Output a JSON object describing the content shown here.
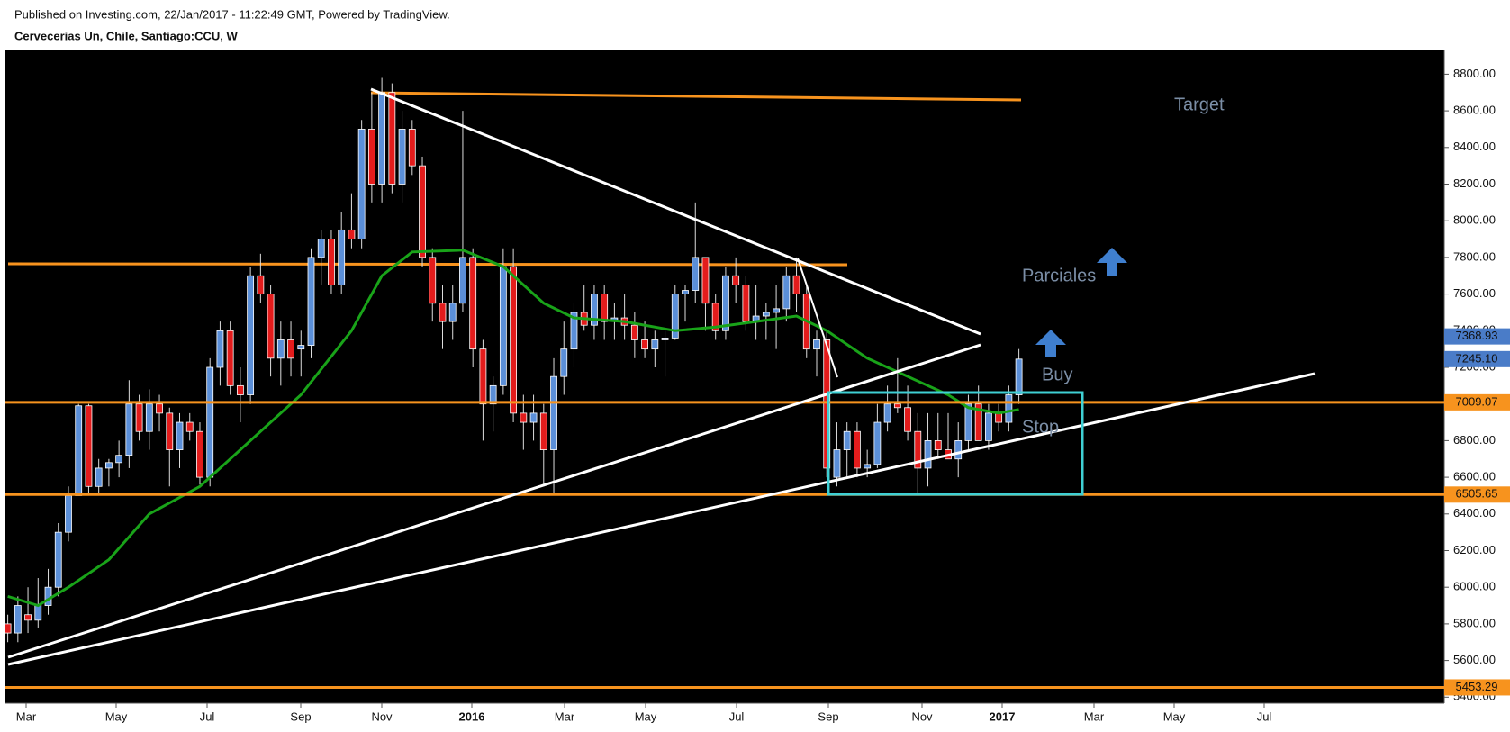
{
  "chart_data": {
    "type": "candlestick",
    "published": "Published on Investing.com, 22/Jan/2017 - 11:22:49 GMT, Powered by TradingView.",
    "title": "Cervecerias Un, Chile, Santiago:CCU, W",
    "up_color": "#5b8fd8",
    "down_color": "#e31c1c",
    "ylim": [
      5400,
      8800
    ],
    "yticks": [
      {
        "value": 5400,
        "label": "5400.00"
      },
      {
        "value": 5600,
        "label": "5600.00"
      },
      {
        "value": 5800,
        "label": "5800.00"
      },
      {
        "value": 6000,
        "label": "6000.00"
      },
      {
        "value": 6200,
        "label": "6200.00"
      },
      {
        "value": 6400,
        "label": "6400.00"
      },
      {
        "value": 6600,
        "label": "6600.00"
      },
      {
        "value": 6800,
        "label": "6800.00"
      },
      {
        "value": 7000,
        "label": "7000.00"
      },
      {
        "value": 7200,
        "label": "7200.00"
      },
      {
        "value": 7400,
        "label": "7400.00"
      },
      {
        "value": 7600,
        "label": "7600.00"
      },
      {
        "value": 7800,
        "label": "7800.00"
      },
      {
        "value": 8000,
        "label": "8000.00"
      },
      {
        "value": 8200,
        "label": "8200.00"
      },
      {
        "value": 8400,
        "label": "8400.00"
      },
      {
        "value": 8600,
        "label": "8600.00"
      },
      {
        "value": 8800,
        "label": "8800.00"
      }
    ],
    "x_labels": [
      "Mar",
      "May",
      "Jul",
      "Sep",
      "Nov",
      "2016",
      "Mar",
      "May",
      "Jul",
      "Sep",
      "Nov",
      "2017",
      "Mar",
      "May",
      "Jul"
    ],
    "ohlc": [
      [
        5800,
        5850,
        5700,
        5750
      ],
      [
        5750,
        5950,
        5700,
        5900
      ],
      [
        5850,
        6000,
        5750,
        5820
      ],
      [
        5820,
        6050,
        5780,
        5900
      ],
      [
        5900,
        6100,
        5850,
        6000
      ],
      [
        6000,
        6350,
        5950,
        6300
      ],
      [
        6300,
        6550,
        6250,
        6500
      ],
      [
        6500,
        7000,
        6500,
        6990
      ],
      [
        6990,
        7000,
        6500,
        6550
      ],
      [
        6550,
        6700,
        6500,
        6650
      ],
      [
        6650,
        6700,
        6550,
        6680
      ],
      [
        6680,
        6800,
        6600,
        6720
      ],
      [
        6720,
        7130,
        6650,
        7000
      ],
      [
        7000,
        7050,
        6800,
        6850
      ],
      [
        6850,
        7080,
        6750,
        7000
      ],
      [
        7000,
        7050,
        6850,
        6950
      ],
      [
        6950,
        6980,
        6550,
        6750
      ],
      [
        6750,
        6950,
        6650,
        6900
      ],
      [
        6900,
        6950,
        6800,
        6850
      ],
      [
        6850,
        6900,
        6560,
        6600
      ],
      [
        6600,
        7250,
        6550,
        7200
      ],
      [
        7200,
        7450,
        7100,
        7400
      ],
      [
        7400,
        7450,
        7050,
        7100
      ],
      [
        7100,
        7200,
        6900,
        7050
      ],
      [
        7050,
        7750,
        7000,
        7700
      ],
      [
        7700,
        7820,
        7550,
        7600
      ],
      [
        7600,
        7650,
        7150,
        7250
      ],
      [
        7250,
        7450,
        7100,
        7350
      ],
      [
        7350,
        7450,
        7150,
        7250
      ],
      [
        7300,
        7400,
        7150,
        7320
      ],
      [
        7320,
        7850,
        7250,
        7800
      ],
      [
        7800,
        7950,
        7650,
        7900
      ],
      [
        7900,
        7950,
        7600,
        7650
      ],
      [
        7650,
        8050,
        7600,
        7950
      ],
      [
        7950,
        8150,
        7850,
        7900
      ],
      [
        7900,
        8550,
        7850,
        8500
      ],
      [
        8500,
        8700,
        8100,
        8200
      ],
      [
        8200,
        8780,
        8100,
        8700
      ],
      [
        8700,
        8750,
        8150,
        8200
      ],
      [
        8200,
        8600,
        8100,
        8500
      ],
      [
        8500,
        8550,
        8250,
        8300
      ],
      [
        8300,
        8350,
        7750,
        7800
      ],
      [
        7800,
        7850,
        7450,
        7550
      ],
      [
        7550,
        7650,
        7300,
        7450
      ],
      [
        7450,
        7650,
        7350,
        7550
      ],
      [
        7550,
        8600,
        7500,
        7800
      ],
      [
        7800,
        7850,
        7200,
        7300
      ],
      [
        7300,
        7350,
        6800,
        7000
      ],
      [
        7000,
        7150,
        6850,
        7100
      ],
      [
        7100,
        7850,
        7050,
        7750
      ],
      [
        7750,
        7850,
        6900,
        6950
      ],
      [
        6950,
        7050,
        6750,
        6900
      ],
      [
        6900,
        7050,
        6800,
        6950
      ],
      [
        6950,
        7000,
        6550,
        6750
      ],
      [
        6750,
        7250,
        6500,
        7150
      ],
      [
        7150,
        7450,
        7050,
        7300
      ],
      [
        7300,
        7550,
        7200,
        7500
      ],
      [
        7500,
        7650,
        7400,
        7430
      ],
      [
        7430,
        7650,
        7350,
        7600
      ],
      [
        7600,
        7650,
        7350,
        7450
      ],
      [
        7450,
        7550,
        7350,
        7470
      ],
      [
        7470,
        7600,
        7350,
        7430
      ],
      [
        7430,
        7500,
        7250,
        7350
      ],
      [
        7350,
        7450,
        7250,
        7300
      ],
      [
        7300,
        7400,
        7200,
        7350
      ],
      [
        7350,
        7400,
        7150,
        7360
      ],
      [
        7360,
        7650,
        7350,
        7600
      ],
      [
        7600,
        7650,
        7450,
        7620
      ],
      [
        7620,
        8100,
        7550,
        7800
      ],
      [
        7800,
        7800,
        7400,
        7550
      ],
      [
        7550,
        7600,
        7350,
        7400
      ],
      [
        7400,
        7750,
        7350,
        7700
      ],
      [
        7700,
        7800,
        7550,
        7650
      ],
      [
        7650,
        7700,
        7400,
        7450
      ],
      [
        7450,
        7650,
        7350,
        7480
      ],
      [
        7480,
        7550,
        7350,
        7500
      ],
      [
        7500,
        7650,
        7300,
        7520
      ],
      [
        7520,
        7750,
        7450,
        7700
      ],
      [
        7700,
        7800,
        7500,
        7600
      ],
      [
        7600,
        7650,
        7250,
        7300
      ],
      [
        7300,
        7400,
        7150,
        7350
      ],
      [
        7350,
        7400,
        6600,
        6650
      ],
      [
        6600,
        6900,
        6550,
        6750
      ],
      [
        6750,
        6900,
        6600,
        6850
      ],
      [
        6850,
        6900,
        6600,
        6650
      ],
      [
        6650,
        6750,
        6600,
        6670
      ],
      [
        6670,
        7000,
        6650,
        6900
      ],
      [
        6900,
        7100,
        6850,
        7000
      ],
      [
        7000,
        7250,
        6950,
        6980
      ],
      [
        6980,
        7100,
        6800,
        6850
      ],
      [
        6850,
        6950,
        6500,
        6650
      ],
      [
        6650,
        6950,
        6550,
        6800
      ],
      [
        6800,
        6950,
        6700,
        6750
      ],
      [
        6750,
        6950,
        6700,
        6700
      ],
      [
        6700,
        6900,
        6600,
        6800
      ],
      [
        6800,
        7050,
        6750,
        7000
      ],
      [
        7000,
        7100,
        6800,
        6800
      ],
      [
        6800,
        7000,
        6750,
        6950
      ],
      [
        6950,
        7000,
        6850,
        6900
      ],
      [
        6900,
        7100,
        6850,
        7050
      ],
      [
        7050,
        7300,
        7000,
        7245.1
      ]
    ],
    "ma": {
      "color": "#19a319",
      "x": [
        0,
        3,
        6,
        10,
        14,
        19,
        24,
        29,
        34,
        37,
        40,
        45,
        49,
        53,
        56,
        61,
        66,
        70,
        74,
        78,
        81,
        85,
        89,
        93,
        95,
        98,
        100
      ],
      "values": [
        5950,
        5900,
        6000,
        6150,
        6400,
        6550,
        6800,
        7050,
        7400,
        7700,
        7830,
        7840,
        7750,
        7550,
        7470,
        7450,
        7400,
        7420,
        7450,
        7480,
        7400,
        7250,
        7150,
        7050,
        6980,
        6950,
        6970
      ]
    },
    "price_labels": [
      {
        "value": 7368.93,
        "label": "7368.93",
        "color": "#4a7cc8",
        "line": false
      },
      {
        "value": 7245.1,
        "label": "7245.10",
        "color": "#4a7cc8",
        "line": false
      },
      {
        "value": 7009.07,
        "label": "7009.07",
        "color": "#f7931e",
        "line": true
      },
      {
        "value": 6505.65,
        "label": "6505.65",
        "color": "#f7931e",
        "line": true
      },
      {
        "value": 5453.29,
        "label": "5453.29",
        "color": "#f7931e",
        "line": true
      }
    ],
    "annotations": [
      "Target",
      "Parciales",
      "Buy",
      "Stop"
    ]
  }
}
